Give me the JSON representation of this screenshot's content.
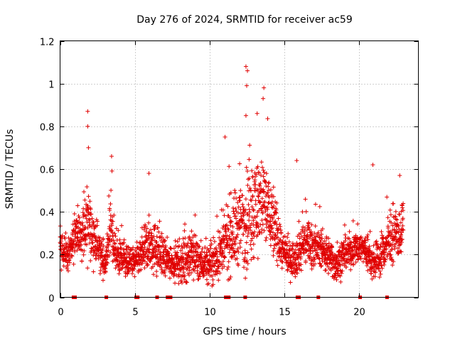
{
  "chart_data": {
    "type": "scatter",
    "title": "Day 276 of 2024, SRMTID for receiver ac59",
    "xlabel": "GPS time / hours",
    "ylabel": "SRMTID / TECUs",
    "xlim": [
      0,
      24
    ],
    "ylim": [
      0,
      1.2
    ],
    "x_ticks": [
      0,
      5,
      10,
      15,
      20
    ],
    "y_ticks": [
      0,
      0.2,
      0.4,
      0.6,
      0.8,
      1,
      1.2
    ],
    "x_tick_labels": [
      "0",
      "5",
      "10",
      "15",
      "20"
    ],
    "y_tick_labels": [
      "0",
      "0.2",
      "0.4",
      "0.6",
      "0.8",
      "1",
      "1.2"
    ],
    "grid": true,
    "marker": "+",
    "color": "#e00000",
    "data_range_hours": [
      0,
      23
    ],
    "typical_value_range": [
      0.1,
      0.35
    ],
    "notable_points": [
      {
        "x": 1.85,
        "y": 0.87
      },
      {
        "x": 1.85,
        "y": 0.8
      },
      {
        "x": 1.9,
        "y": 0.7
      },
      {
        "x": 3.45,
        "y": 0.66
      },
      {
        "x": 5.95,
        "y": 0.58
      },
      {
        "x": 11.05,
        "y": 0.75
      },
      {
        "x": 12.45,
        "y": 1.08
      },
      {
        "x": 12.55,
        "y": 1.06
      },
      {
        "x": 12.5,
        "y": 0.99
      },
      {
        "x": 13.65,
        "y": 0.98
      },
      {
        "x": 13.6,
        "y": 0.93
      },
      {
        "x": 13.2,
        "y": 0.86
      },
      {
        "x": 12.45,
        "y": 0.85
      },
      {
        "x": 15.85,
        "y": 0.64
      },
      {
        "x": 20.95,
        "y": 0.62
      },
      {
        "x": 22.75,
        "y": 0.57
      }
    ],
    "zero_value_times": [
      0.9,
      1.0,
      3.1,
      5.1,
      5.2,
      6.5,
      7.2,
      7.4,
      11.1,
      11.3,
      12.4,
      15.9,
      16.0,
      17.3,
      20.1,
      21.9
    ],
    "envelope_x": [
      0,
      0.5,
      1,
      1.5,
      1.8,
      2,
      2.5,
      3,
      3.4,
      3.7,
      4,
      4.5,
      5,
      5.5,
      6,
      6.5,
      7,
      7.5,
      8,
      8.5,
      9,
      9.5,
      10,
      10.5,
      11,
      11.5,
      12,
      12.5,
      13,
      13.5,
      14,
      14.5,
      15,
      15.5,
      16,
      16.5,
      17,
      17.5,
      18,
      18.5,
      19,
      19.5,
      20,
      20.5,
      21,
      21.5,
      22,
      22.5,
      23
    ],
    "envelope_center": [
      0.24,
      0.18,
      0.28,
      0.3,
      0.34,
      0.32,
      0.24,
      0.16,
      0.32,
      0.2,
      0.18,
      0.17,
      0.16,
      0.2,
      0.26,
      0.22,
      0.18,
      0.17,
      0.16,
      0.18,
      0.2,
      0.16,
      0.15,
      0.18,
      0.24,
      0.3,
      0.33,
      0.38,
      0.42,
      0.46,
      0.4,
      0.3,
      0.2,
      0.17,
      0.22,
      0.27,
      0.24,
      0.23,
      0.19,
      0.15,
      0.2,
      0.22,
      0.24,
      0.22,
      0.15,
      0.2,
      0.26,
      0.28,
      0.32
    ],
    "envelope_spread": [
      0.08,
      0.07,
      0.1,
      0.12,
      0.2,
      0.12,
      0.1,
      0.06,
      0.14,
      0.08,
      0.07,
      0.06,
      0.07,
      0.08,
      0.12,
      0.1,
      0.08,
      0.07,
      0.08,
      0.1,
      0.1,
      0.08,
      0.08,
      0.1,
      0.14,
      0.16,
      0.18,
      0.22,
      0.2,
      0.2,
      0.18,
      0.12,
      0.07,
      0.07,
      0.1,
      0.1,
      0.08,
      0.07,
      0.08,
      0.07,
      0.07,
      0.07,
      0.07,
      0.07,
      0.07,
      0.08,
      0.1,
      0.1,
      0.12
    ]
  }
}
